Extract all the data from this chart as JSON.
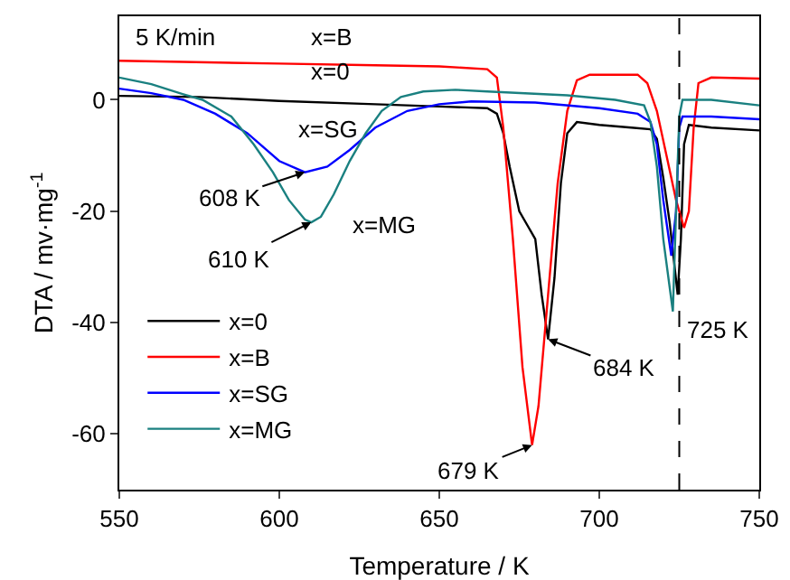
{
  "chart_data": {
    "type": "line",
    "xlabel": "Temperature / K",
    "ylabel": "DTA / mv·mg$^{-1}$",
    "xlim": [
      550,
      750
    ],
    "xticks": [
      550,
      600,
      650,
      700,
      750
    ],
    "ylim": [
      -70,
      15
    ],
    "yticks": [
      -60,
      -40,
      -20,
      0
    ],
    "grid": false,
    "legend": "bottom left",
    "marker": "none",
    "line_style": "solid",
    "series": [
      {
        "name": "x=0",
        "color": "#000000",
        "x": [
          550,
          575,
          600,
          630,
          650,
          665,
          668,
          670,
          672,
          675,
          678,
          680,
          682,
          684,
          686,
          688,
          690,
          693,
          700,
          710,
          716,
          718,
          720,
          722,
          724.5,
          725.5,
          726.5,
          728,
          735,
          750
        ],
        "values": [
          0.7,
          0.5,
          -0.2,
          -0.8,
          -1.2,
          -1.5,
          -2.5,
          -6,
          -12,
          -20,
          -23,
          -25,
          -35,
          -43,
          -32,
          -15,
          -6,
          -4,
          -4.5,
          -5,
          -5.3,
          -7,
          -14,
          -22,
          -35,
          -25,
          -8,
          -4.5,
          -5,
          -5.5
        ]
      },
      {
        "name": "x=B",
        "color": "#ff0000",
        "x": [
          550,
          570,
          600,
          630,
          650,
          665,
          668,
          670,
          673,
          676,
          679,
          681,
          684,
          687,
          690,
          693,
          697,
          705,
          712,
          715,
          718,
          721,
          724,
          726.5,
          728,
          729.5,
          731,
          735,
          750
        ],
        "values": [
          7,
          6.8,
          6.5,
          6.2,
          6,
          5.5,
          4,
          -5,
          -25,
          -48,
          -62,
          -55,
          -35,
          -15,
          -2,
          3.5,
          4.5,
          4.5,
          4.5,
          3,
          -2,
          -10,
          -18,
          -23,
          -20,
          -5,
          3,
          4,
          3.8
        ]
      },
      {
        "name": "x=SG",
        "color": "#0000ff",
        "x": [
          550,
          560,
          570,
          580,
          590,
          600,
          608,
          615,
          622,
          630,
          640,
          650,
          660,
          680,
          700,
          712,
          716,
          718,
          720,
          722.5,
          724,
          725,
          726,
          735,
          750
        ],
        "values": [
          2,
          1.2,
          0,
          -2.5,
          -6,
          -11,
          -13,
          -12,
          -9,
          -5,
          -2,
          -0.8,
          -0.3,
          -0.5,
          -1.5,
          -2.5,
          -4,
          -8,
          -18,
          -28,
          -20,
          -5,
          -3,
          -3,
          -3.5
        ]
      },
      {
        "name": "x=MG",
        "color": "#1a8080",
        "x": [
          550,
          560,
          570,
          576,
          585,
          592,
          598,
          603,
          608,
          610,
          613,
          617,
          622,
          627,
          632,
          638,
          645,
          655,
          665,
          690,
          705,
          714,
          716,
          718,
          720,
          723,
          724,
          725,
          726,
          735,
          750
        ],
        "values": [
          4,
          2.8,
          1,
          0,
          -3,
          -8,
          -13,
          -18,
          -21.5,
          -22,
          -21,
          -17,
          -11,
          -6,
          -2,
          0.5,
          1.5,
          1.8,
          1.5,
          0.8,
          0,
          -1,
          -4,
          -12,
          -25,
          -38,
          -20,
          -3,
          0,
          0,
          -1
        ]
      }
    ],
    "ref_lines": [
      {
        "axis": "x",
        "value": 725,
        "label": "725 K",
        "color": "#000000",
        "line_style": "dashed"
      }
    ],
    "annotations": [
      "5 K/min",
      "x=B",
      "x=0",
      "x=SG",
      "x=MG",
      {
        "text": "608 K",
        "x": 608,
        "y": -13
      },
      {
        "text": "610 K",
        "x": 610,
        "y": -22
      },
      {
        "text": "684 K",
        "x": 684,
        "y": -43
      },
      {
        "text": "679 K",
        "x": 679,
        "y": -62
      }
    ]
  }
}
